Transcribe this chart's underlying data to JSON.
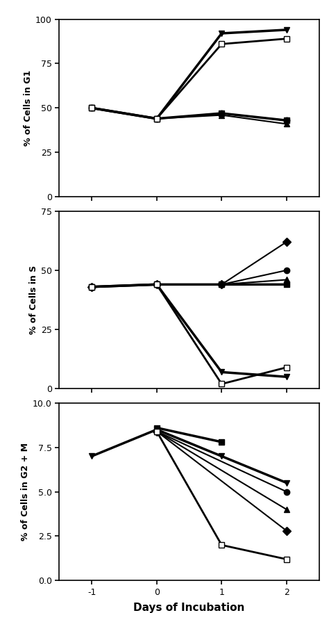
{
  "x": [
    -1,
    0,
    1,
    2
  ],
  "panel1_ylabel": "% of Cells in G1",
  "panel1_ylim": [
    0,
    100
  ],
  "panel1_yticks": [
    0,
    25,
    50,
    75,
    100
  ],
  "panel1_series": [
    {
      "marker": "s",
      "filled": true,
      "lw": 2.5,
      "y": [
        50,
        44,
        47,
        43
      ]
    },
    {
      "marker": "o",
      "filled": true,
      "lw": 1.5,
      "y": [
        50,
        44,
        47,
        43
      ]
    },
    {
      "marker": "^",
      "filled": true,
      "lw": 1.5,
      "y": [
        50,
        44,
        46,
        41
      ]
    },
    {
      "marker": "v",
      "filled": true,
      "lw": 2.5,
      "y": [
        50,
        44,
        92,
        94
      ]
    },
    {
      "marker": "s",
      "filled": false,
      "lw": 2.0,
      "y": [
        50,
        44,
        86,
        89
      ]
    }
  ],
  "panel2_ylabel": "% of Cells in S",
  "panel2_ylim": [
    0,
    75
  ],
  "panel2_yticks": [
    0,
    25,
    50,
    75
  ],
  "panel2_series": [
    {
      "marker": "s",
      "filled": true,
      "lw": 2.5,
      "y": [
        43,
        44,
        44,
        44
      ]
    },
    {
      "marker": "D",
      "filled": true,
      "lw": 1.5,
      "y": [
        43,
        44,
        44,
        62
      ]
    },
    {
      "marker": "o",
      "filled": true,
      "lw": 1.5,
      "y": [
        43,
        44,
        44,
        50
      ]
    },
    {
      "marker": "^",
      "filled": true,
      "lw": 1.5,
      "y": [
        43,
        44,
        44,
        46
      ]
    },
    {
      "marker": "v",
      "filled": true,
      "lw": 2.5,
      "y": [
        43,
        44,
        7,
        5
      ]
    },
    {
      "marker": "s",
      "filled": false,
      "lw": 2.0,
      "y": [
        43,
        44,
        2,
        9
      ]
    }
  ],
  "panel3_ylabel": "% of Cells in G2 + M",
  "panel3_ylim": [
    0.0,
    10.0
  ],
  "panel3_yticks": [
    0.0,
    2.5,
    5.0,
    7.5,
    10.0
  ],
  "panel3_series": [
    {
      "marker": "s",
      "filled": true,
      "lw": 2.5,
      "y": [
        null,
        8.6,
        7.8,
        null
      ]
    },
    {
      "marker": "D",
      "filled": true,
      "lw": 1.5,
      "y": [
        null,
        8.4,
        null,
        2.8
      ]
    },
    {
      "marker": "o",
      "filled": true,
      "lw": 1.5,
      "y": [
        null,
        8.4,
        null,
        5.0
      ]
    },
    {
      "marker": "^",
      "filled": true,
      "lw": 1.5,
      "y": [
        null,
        8.4,
        null,
        4.0
      ]
    },
    {
      "marker": "v",
      "filled": true,
      "lw": 2.5,
      "y": [
        7.0,
        8.5,
        7.0,
        5.5
      ]
    },
    {
      "marker": "s",
      "filled": false,
      "lw": 2.0,
      "y": [
        null,
        8.4,
        2.0,
        1.2
      ]
    }
  ],
  "xlabel": "Days of Incubation",
  "line_color": "black",
  "markersize": 6,
  "background_color": "#ffffff"
}
